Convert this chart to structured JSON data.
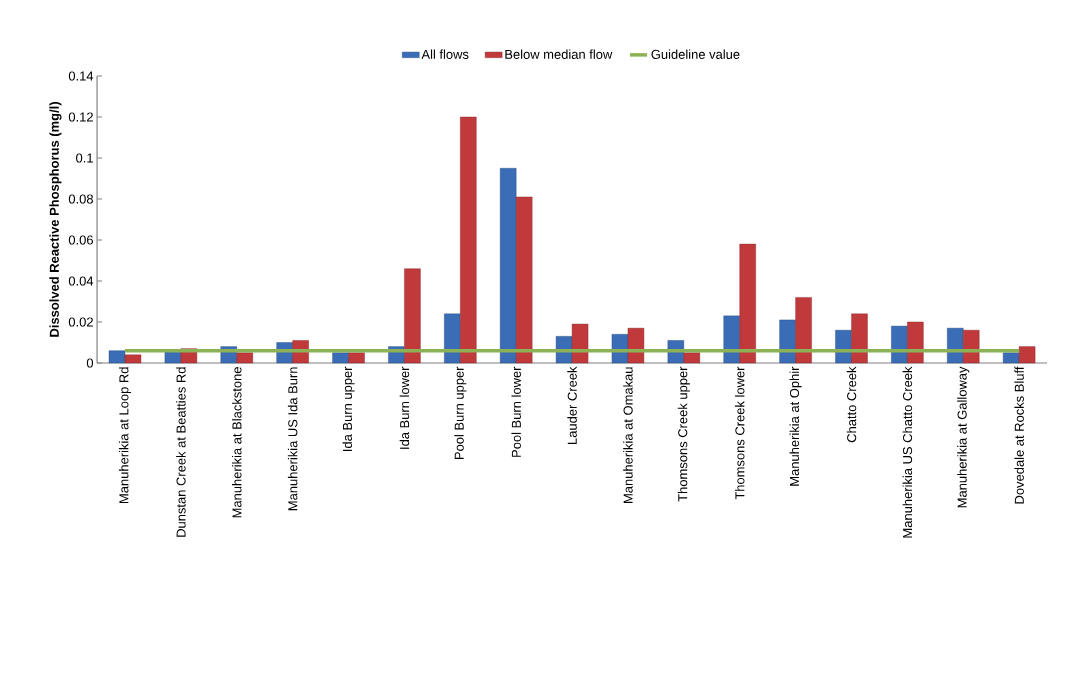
{
  "chart_data": {
    "type": "bar",
    "ylabel": "Dissolved Reactive Phosphorus (mg/l)",
    "categories": [
      "Manuherikia at Loop Rd",
      "Dunstan Creek at Beatties Rd",
      "Manuherikia at Blackstone",
      "Manuherikia US Ida Burn",
      "Ida Burn upper",
      "Ida Burn lower",
      "Pool Burn upper",
      "Pool Burn lower",
      "Lauder Creek",
      "Manuherikia at Omakau",
      "Thomsons Creek upper",
      "Thomsons Creek lower",
      "Manuherikia at Ophir",
      "Chatto Creek",
      "Manuherikia US Chatto Creek",
      "Manuherikia at Galloway",
      "Dovedale at Rocks Bluff"
    ],
    "series": [
      {
        "name": "All flows",
        "color": "#3a6db5",
        "values": [
          0.006,
          0.006,
          0.008,
          0.01,
          0.005,
          0.008,
          0.024,
          0.095,
          0.013,
          0.014,
          0.011,
          0.023,
          0.021,
          0.016,
          0.018,
          0.017,
          0.005
        ]
      },
      {
        "name": "Below median flow",
        "color": "#c0393b",
        "values": [
          0.004,
          0.007,
          0.005,
          0.011,
          0.005,
          0.046,
          0.12,
          0.081,
          0.019,
          0.017,
          0.005,
          0.058,
          0.032,
          0.024,
          0.02,
          0.016,
          0.008
        ]
      },
      {
        "name": "Guideline value",
        "type": "line",
        "color": "#8db255",
        "values": [
          0.006,
          0.006,
          0.006,
          0.006,
          0.006,
          0.006,
          0.006,
          0.006,
          0.006,
          0.006,
          0.006,
          0.006,
          0.006,
          0.006,
          0.006,
          0.006,
          0.006
        ]
      }
    ],
    "ylim": [
      0,
      0.14
    ],
    "yticks": [
      0,
      0.02,
      0.04,
      0.06,
      0.08,
      0.1,
      0.12,
      0.14
    ],
    "legend": "top",
    "marker": "none"
  }
}
